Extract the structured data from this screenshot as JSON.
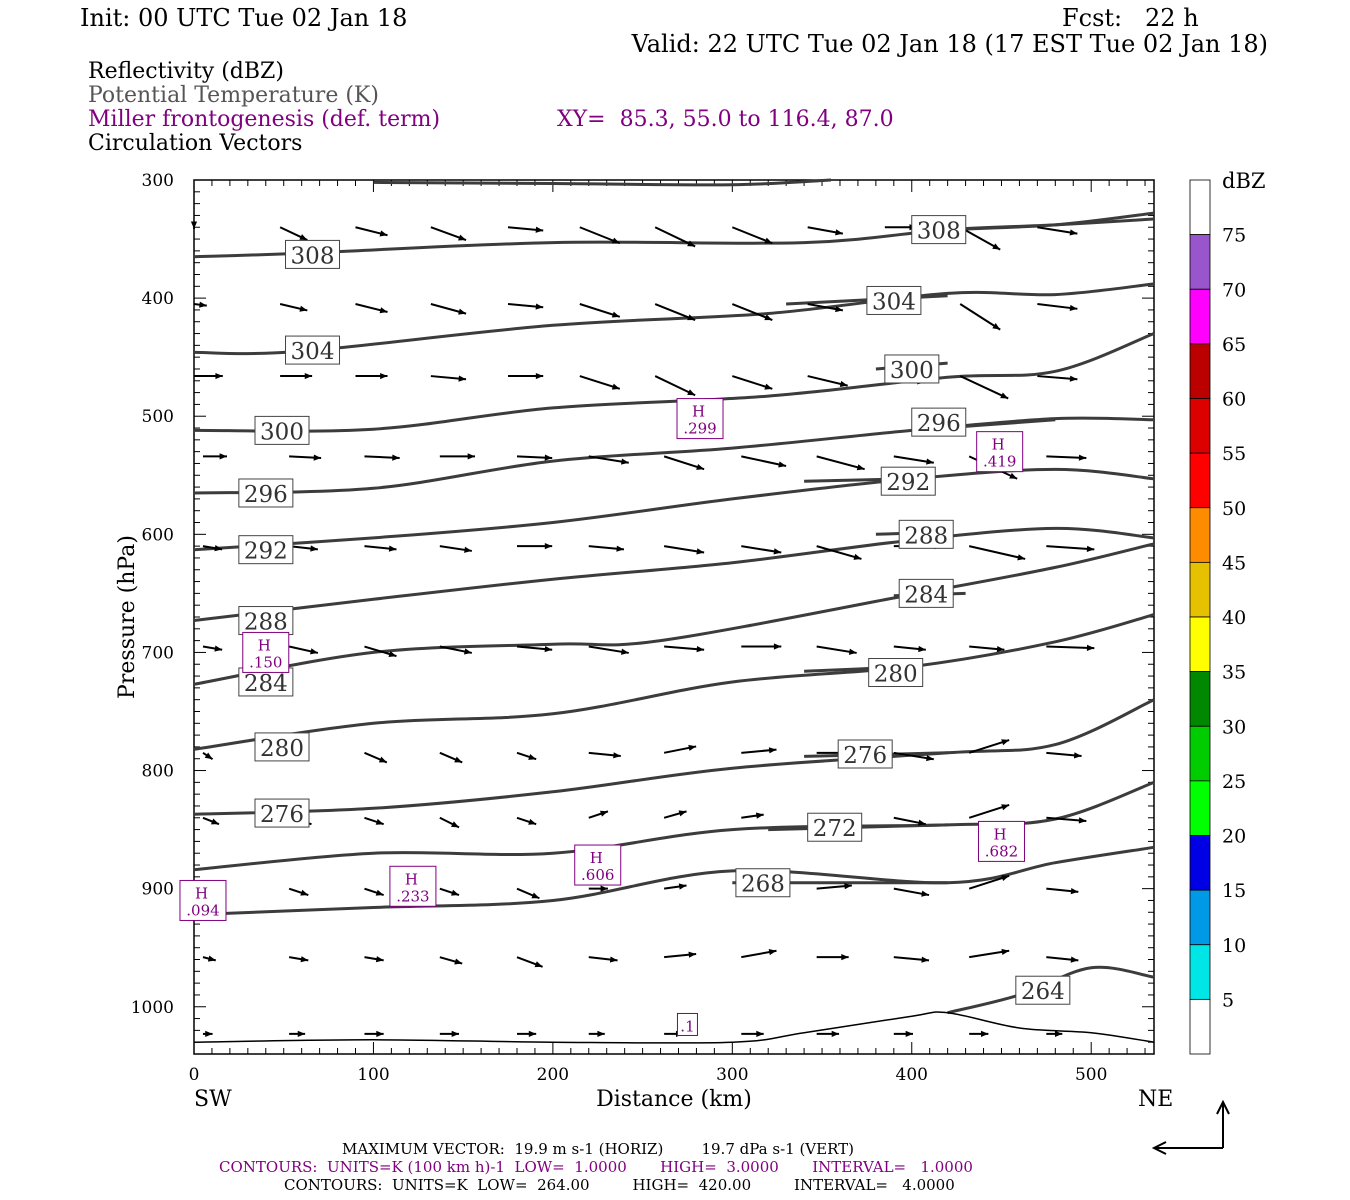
{
  "header": {
    "init": "Init: 00 UTC Tue 02 Jan 18",
    "fcst": "Fcst:   22 h",
    "valid": "Valid: 22 UTC Tue 02 Jan 18 (17 EST Tue 02 Jan 18)",
    "fields": {
      "reflectivity": "Reflectivity (dBZ)",
      "potential_temperature": "Potential Temperature (K)",
      "miller": "Miller frontogenesis (def. term)",
      "circulation": "Circulation Vectors"
    },
    "xy": "XY=  85.3, 55.0 to 116.4, 87.0"
  },
  "colors": {
    "theta": "#3c3c3c",
    "frontogenesis": "#800080",
    "vectors": "#000000"
  },
  "chart_data": {
    "type": "cross-section",
    "xlabel": "Distance (km)",
    "ylabel": "Pressure (hPa)",
    "xlim": [
      0,
      535
    ],
    "ylim": [
      300,
      1040
    ],
    "x_ticks": [
      0,
      100,
      200,
      300,
      400,
      500
    ],
    "y_ticks": [
      300,
      400,
      500,
      600,
      700,
      800,
      900,
      1000
    ],
    "left_endpoint": "SW",
    "right_endpoint": "NE",
    "colorbar": {
      "title": "dBZ",
      "labels": [
        "5",
        "10",
        "15",
        "20",
        "25",
        "30",
        "35",
        "40",
        "45",
        "50",
        "55",
        "60",
        "65",
        "70",
        "75"
      ],
      "colors": [
        "#ffffff",
        "#00e5e5",
        "#0099e5",
        "#0000e5",
        "#00ff00",
        "#00cc00",
        "#008800",
        "#ffff00",
        "#e5c100",
        "#ff8c00",
        "#ff0000",
        "#dd0000",
        "#bb0000",
        "#ff00ff",
        "#9955cc",
        "#ffffff"
      ]
    },
    "theta_contours": [
      {
        "label": "308",
        "points": [
          [
            0,
            365
          ],
          [
            60,
            362
          ],
          [
            200,
            353
          ],
          [
            340,
            353
          ],
          [
            420,
            342
          ],
          [
            480,
            338
          ],
          [
            535,
            333
          ]
        ],
        "label_pos": [
          51,
          363
        ]
      },
      {
        "label": "308",
        "points": [
          [
            100,
            302
          ],
          [
            200,
            303
          ],
          [
            300,
            304
          ],
          [
            355,
            300
          ]
        ],
        "label_pos": null
      },
      {
        "label": "308",
        "points": [
          [
            420,
            342
          ],
          [
            480,
            338
          ],
          [
            535,
            328
          ]
        ],
        "label_pos": [
          400,
          342
        ]
      },
      {
        "label": "304",
        "points": [
          [
            0,
            446
          ],
          [
            60,
            445
          ],
          [
            200,
            423
          ],
          [
            320,
            413
          ],
          [
            420,
            396
          ],
          [
            480,
            397
          ],
          [
            535,
            388
          ]
        ],
        "label_pos": [
          51,
          444
        ]
      },
      {
        "label": "304",
        "points": [
          [
            330,
            405
          ],
          [
            420,
            398
          ]
        ],
        "label_pos": [
          375,
          402
        ]
      },
      {
        "label": "300",
        "points": [
          [
            0,
            512
          ],
          [
            100,
            511
          ],
          [
            200,
            493
          ],
          [
            320,
            483
          ],
          [
            420,
            467
          ],
          [
            480,
            462
          ],
          [
            535,
            430
          ]
        ],
        "label_pos": [
          34,
          512
        ]
      },
      {
        "label": "300",
        "points": [
          [
            380,
            460
          ],
          [
            420,
            455
          ]
        ],
        "label_pos": [
          385,
          460
        ]
      },
      {
        "label": "296",
        "points": [
          [
            0,
            565
          ],
          [
            100,
            561
          ],
          [
            200,
            538
          ],
          [
            300,
            527
          ],
          [
            400,
            512
          ],
          [
            480,
            502
          ],
          [
            535,
            503
          ]
        ],
        "label_pos": [
          25,
          565
        ]
      },
      {
        "label": "296",
        "points": [
          [
            400,
            512
          ],
          [
            480,
            503
          ]
        ],
        "label_pos": [
          400,
          505
        ]
      },
      {
        "label": "292",
        "points": [
          [
            0,
            613
          ],
          [
            100,
            603
          ],
          [
            200,
            590
          ],
          [
            300,
            570
          ],
          [
            400,
            553
          ],
          [
            480,
            545
          ],
          [
            535,
            553
          ]
        ],
        "label_pos": [
          25,
          613
        ]
      },
      {
        "label": "292",
        "points": [
          [
            340,
            555
          ],
          [
            400,
            553
          ]
        ],
        "label_pos": [
          383,
          555
        ]
      },
      {
        "label": "288",
        "points": [
          [
            0,
            673
          ],
          [
            100,
            655
          ],
          [
            200,
            638
          ],
          [
            300,
            624
          ],
          [
            400,
            605
          ],
          [
            480,
            595
          ],
          [
            535,
            603
          ]
        ],
        "label_pos": [
          25,
          673
        ]
      },
      {
        "label": "288",
        "points": [
          [
            380,
            600
          ],
          [
            420,
            598
          ]
        ],
        "label_pos": [
          393,
          600
        ]
      },
      {
        "label": "284",
        "points": [
          [
            0,
            727
          ],
          [
            100,
            700
          ],
          [
            200,
            693
          ],
          [
            260,
            690
          ],
          [
            400,
            651
          ],
          [
            480,
            628
          ],
          [
            535,
            608
          ]
        ],
        "label_pos": [
          25,
          725
        ]
      },
      {
        "label": "284",
        "points": [
          [
            390,
            652
          ],
          [
            430,
            650
          ]
        ],
        "label_pos": [
          393,
          650
        ]
      },
      {
        "label": "280",
        "points": [
          [
            0,
            782
          ],
          [
            100,
            760
          ],
          [
            200,
            752
          ],
          [
            300,
            725
          ],
          [
            400,
            712
          ],
          [
            480,
            691
          ],
          [
            535,
            668
          ]
        ],
        "label_pos": [
          34,
          780
        ]
      },
      {
        "label": "280",
        "points": [
          [
            340,
            716
          ],
          [
            400,
            712
          ]
        ],
        "label_pos": [
          376,
          717
        ]
      },
      {
        "label": "276",
        "points": [
          [
            0,
            837
          ],
          [
            100,
            832
          ],
          [
            200,
            818
          ],
          [
            300,
            798
          ],
          [
            420,
            785
          ],
          [
            480,
            778
          ],
          [
            535,
            740
          ]
        ],
        "label_pos": [
          34,
          836
        ]
      },
      {
        "label": "276",
        "points": [
          [
            340,
            788
          ],
          [
            420,
            785
          ]
        ],
        "label_pos": [
          359,
          786
        ]
      },
      {
        "label": "272",
        "points": [
          [
            0,
            884
          ],
          [
            100,
            870
          ],
          [
            200,
            870
          ],
          [
            300,
            850
          ],
          [
            420,
            846
          ],
          [
            480,
            841
          ],
          [
            535,
            810
          ]
        ],
        "label_pos": null
      },
      {
        "label": "272",
        "points": [
          [
            320,
            850
          ],
          [
            420,
            846
          ]
        ],
        "label_pos": [
          342,
          848
        ]
      },
      {
        "label": "268",
        "points": [
          [
            0,
            922
          ],
          [
            100,
            916
          ],
          [
            200,
            910
          ],
          [
            300,
            885
          ],
          [
            420,
            895
          ],
          [
            480,
            878
          ],
          [
            535,
            865
          ]
        ],
        "label_pos": null
      },
      {
        "label": "268",
        "points": [
          [
            300,
            895
          ],
          [
            420,
            895
          ]
        ],
        "label_pos": [
          302,
          895
        ]
      },
      {
        "label": "264",
        "points": [
          [
            420,
            1005
          ],
          [
            460,
            990
          ],
          [
            500,
            967
          ],
          [
            535,
            975
          ]
        ],
        "label_pos": [
          458,
          986
        ]
      }
    ],
    "frontogenesis_maxima": [
      {
        "label": "H",
        "value": ".299",
        "x": 282,
        "p": 502
      },
      {
        "label": "H",
        "value": ".419",
        "x": 449,
        "p": 530
      },
      {
        "label": "H",
        "value": ".150",
        "x": 40,
        "p": 700
      },
      {
        "label": "H",
        "value": ".606",
        "x": 225,
        "p": 880
      },
      {
        "label": "H",
        "value": ".682",
        "x": 450,
        "p": 860
      },
      {
        "label": "H",
        "value": ".094",
        "x": 5,
        "p": 910
      },
      {
        "label": "H",
        "value": ".233",
        "x": 122,
        "p": 898
      },
      {
        "label": "",
        "value": ".1",
        "x": 275,
        "p": 1015
      }
    ],
    "terrain_p": [
      [
        0,
        1030
      ],
      [
        100,
        1028
      ],
      [
        200,
        1030
      ],
      [
        300,
        1030
      ],
      [
        340,
        1022
      ],
      [
        400,
        1008
      ],
      [
        420,
        1005
      ],
      [
        460,
        1018
      ],
      [
        500,
        1022
      ],
      [
        535,
        1030
      ]
    ],
    "vectors": [
      {
        "x": 30,
        "p": 455,
        "u": 20,
        "w": 0
      },
      {
        "x": 75,
        "p": 455,
        "u": 25,
        "w": 0
      },
      {
        "x": 130,
        "p": 455,
        "u": 20,
        "w": 0
      },
      {
        "x": 190,
        "p": 455,
        "u": 25,
        "w": 2
      },
      {
        "x": 240,
        "p": 455,
        "u": 25,
        "w": 0
      },
      {
        "x": 300,
        "p": 460,
        "u": 25,
        "w": 2
      },
      {
        "x": 350,
        "p": 470,
        "u": 25,
        "w": 3
      },
      {
        "x": 420,
        "p": 480,
        "u": 25,
        "w": 2
      },
      {
        "x": 480,
        "p": 460,
        "u": 25,
        "w": 5
      },
      {
        "x": 510,
        "p": 420,
        "u": 25,
        "w": 5
      }
    ],
    "footer": {
      "max_vector": "MAXIMUM VECTOR:  19.9 m s-1 (HORIZ)        19.7 dPa s-1 (VERT)",
      "contours_miller": "CONTOURS:  UNITS=K (100 km h)-1  LOW=  1.0000       HIGH=  3.0000       INTERVAL=   1.0000",
      "contours_theta": "CONTOURS:  UNITS=K  LOW=  264.00         HIGH=  420.00         INTERVAL=   4.0000"
    }
  }
}
